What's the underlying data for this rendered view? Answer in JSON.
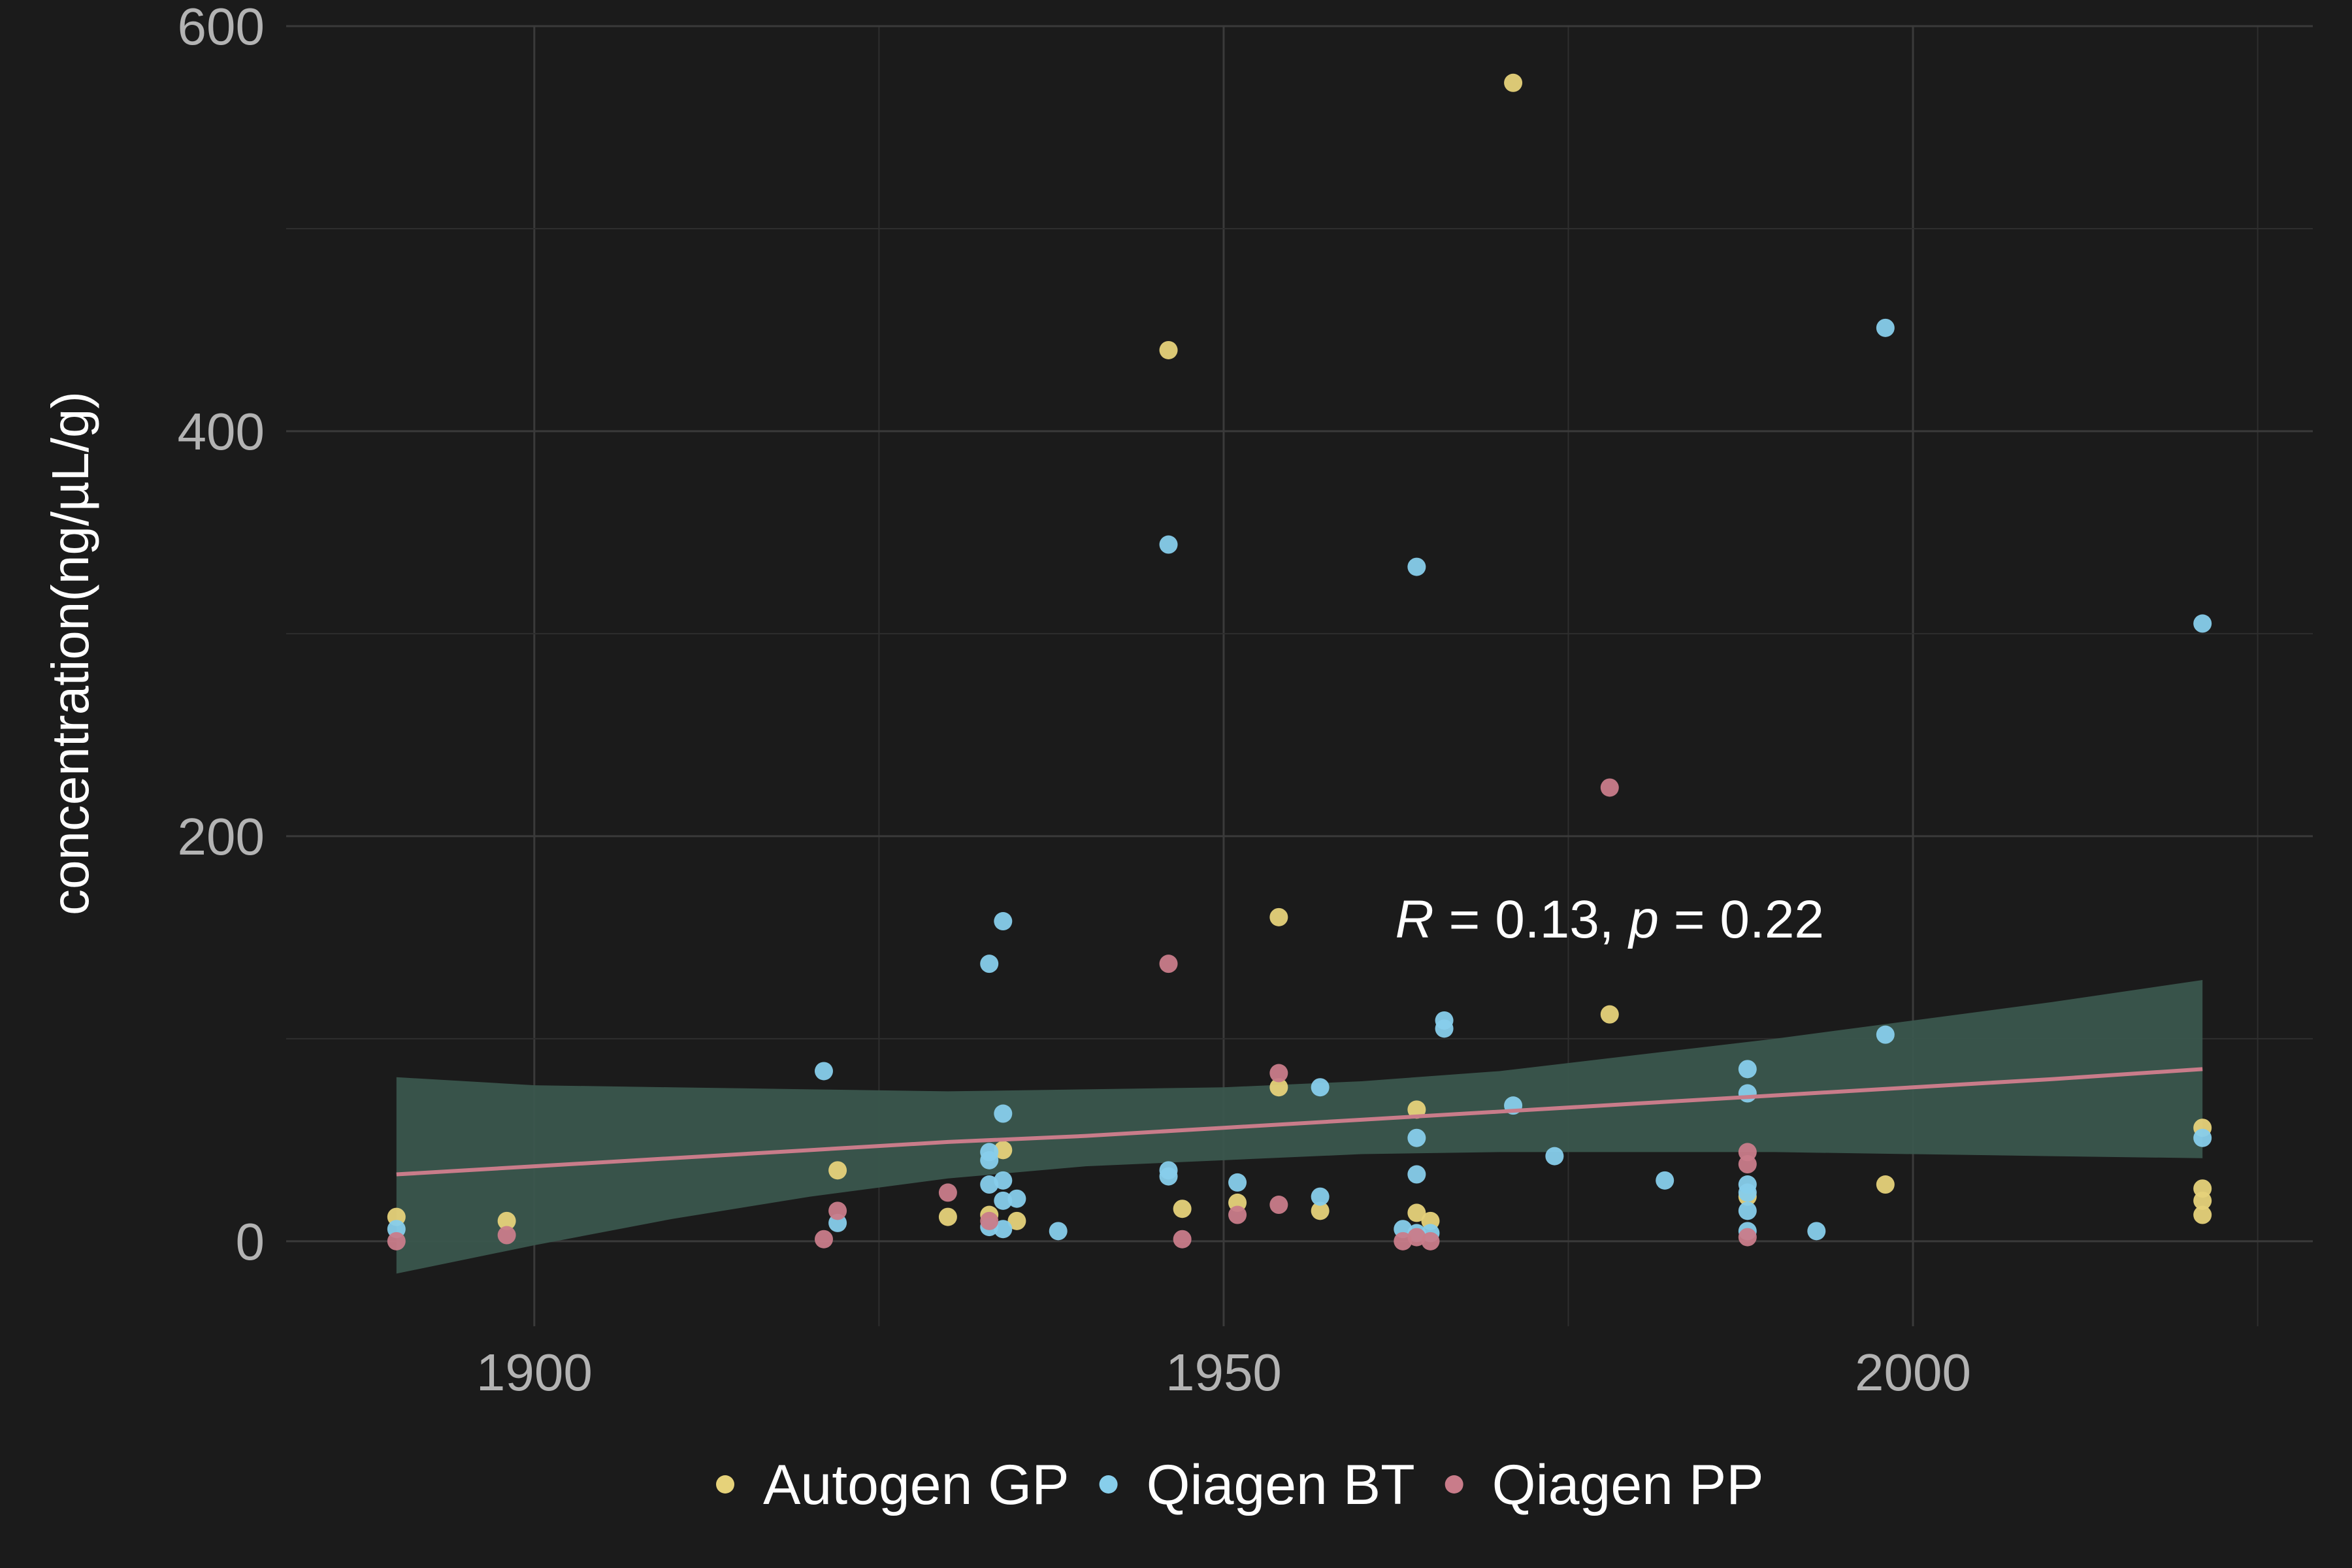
{
  "chart_data": {
    "type": "scatter",
    "title": "",
    "xlabel": "",
    "ylabel": "concentration(ng/µL/g)",
    "xlim": [
      1882,
      2029
    ],
    "ylim": [
      -42,
      600
    ],
    "x_ticks": [
      1900,
      1950,
      2000
    ],
    "y_ticks": [
      0,
      200,
      400,
      600
    ],
    "grid": true,
    "legend_position": "bottom",
    "series": [
      {
        "name": "Autogen GP",
        "color": "#e6d27a",
        "points": [
          [
            1890,
            12
          ],
          [
            1898,
            10
          ],
          [
            1922,
            35
          ],
          [
            1930,
            12
          ],
          [
            1933,
            13
          ],
          [
            1934,
            45
          ],
          [
            1935,
            10
          ],
          [
            1946,
            440
          ],
          [
            1947,
            16
          ],
          [
            1951,
            19
          ],
          [
            1954,
            160
          ],
          [
            1954,
            76
          ],
          [
            1957,
            15
          ],
          [
            1964,
            65
          ],
          [
            1964,
            14
          ],
          [
            1965,
            10
          ],
          [
            1971,
            572
          ],
          [
            1978,
            112
          ],
          [
            1988,
            22
          ],
          [
            1998,
            28
          ],
          [
            2021,
            56
          ],
          [
            2021,
            26
          ],
          [
            2021,
            20
          ],
          [
            2021,
            13
          ]
        ]
      },
      {
        "name": "Qiagen BT",
        "color": "#87ceeb",
        "points": [
          [
            1890,
            6
          ],
          [
            1921,
            84
          ],
          [
            1922,
            9
          ],
          [
            1933,
            137
          ],
          [
            1934,
            158
          ],
          [
            1934,
            63
          ],
          [
            1933,
            44
          ],
          [
            1933,
            40
          ],
          [
            1933,
            28
          ],
          [
            1934,
            30
          ],
          [
            1934,
            20
          ],
          [
            1935,
            21
          ],
          [
            1934,
            6
          ],
          [
            1933,
            7
          ],
          [
            1938,
            5
          ],
          [
            1946,
            344
          ],
          [
            1946,
            35
          ],
          [
            1946,
            32
          ],
          [
            1951,
            29
          ],
          [
            1957,
            76
          ],
          [
            1957,
            22
          ],
          [
            1963,
            6
          ],
          [
            1964,
            333
          ],
          [
            1964,
            51
          ],
          [
            1964,
            33
          ],
          [
            1964,
            4
          ],
          [
            1965,
            4
          ],
          [
            1966,
            109
          ],
          [
            1966,
            105
          ],
          [
            1971,
            67
          ],
          [
            1974,
            42
          ],
          [
            1982,
            30
          ],
          [
            1988,
            85
          ],
          [
            1988,
            73
          ],
          [
            1988,
            28
          ],
          [
            1988,
            24
          ],
          [
            1988,
            15
          ],
          [
            1988,
            5
          ],
          [
            1993,
            5
          ],
          [
            1998,
            451
          ],
          [
            1998,
            102
          ],
          [
            2021,
            305
          ],
          [
            2021,
            51
          ]
        ]
      },
      {
        "name": "Qiagen PP",
        "color": "#c97c8a",
        "points": [
          [
            1890,
            0
          ],
          [
            1898,
            3
          ],
          [
            1921,
            1
          ],
          [
            1922,
            15
          ],
          [
            1930,
            24
          ],
          [
            1933,
            10
          ],
          [
            1946,
            137
          ],
          [
            1947,
            1
          ],
          [
            1951,
            13
          ],
          [
            1954,
            83
          ],
          [
            1954,
            18
          ],
          [
            1963,
            0
          ],
          [
            1964,
            2
          ],
          [
            1965,
            0
          ],
          [
            1978,
            224
          ],
          [
            1988,
            44
          ],
          [
            1988,
            38
          ],
          [
            1988,
            2
          ]
        ]
      }
    ],
    "trend": {
      "color": "#c97c8a",
      "ribbon_color": "#3a564d",
      "points": [
        [
          1890,
          33
        ],
        [
          1900,
          37
        ],
        [
          1910,
          41
        ],
        [
          1920,
          45
        ],
        [
          1930,
          49
        ],
        [
          1940,
          52
        ],
        [
          1950,
          56
        ],
        [
          1960,
          60
        ],
        [
          1970,
          64
        ],
        [
          1980,
          68
        ],
        [
          1990,
          72
        ],
        [
          2000,
          76
        ],
        [
          2010,
          80
        ],
        [
          2021,
          85
        ]
      ],
      "lower": [
        [
          1890,
          -16
        ],
        [
          1900,
          -2
        ],
        [
          1910,
          11
        ],
        [
          1920,
          22
        ],
        [
          1930,
          31
        ],
        [
          1940,
          37
        ],
        [
          1950,
          40
        ],
        [
          1960,
          43
        ],
        [
          1970,
          44
        ],
        [
          1980,
          44
        ],
        [
          1990,
          44
        ],
        [
          2000,
          43
        ],
        [
          2010,
          42
        ],
        [
          2021,
          41
        ]
      ],
      "upper": [
        [
          1890,
          81
        ],
        [
          1900,
          77
        ],
        [
          1910,
          76
        ],
        [
          1920,
          75
        ],
        [
          1930,
          74
        ],
        [
          1940,
          75
        ],
        [
          1950,
          76
        ],
        [
          1960,
          79
        ],
        [
          1970,
          84
        ],
        [
          1980,
          92
        ],
        [
          1990,
          100
        ],
        [
          2000,
          109
        ],
        [
          2010,
          118
        ],
        [
          2021,
          129
        ]
      ]
    },
    "annotation": {
      "r_symbol": "R",
      "r_text": " = 0.13, ",
      "p_symbol": "p",
      "p_text": " = 0.22",
      "x": 1978,
      "y": 150
    }
  }
}
